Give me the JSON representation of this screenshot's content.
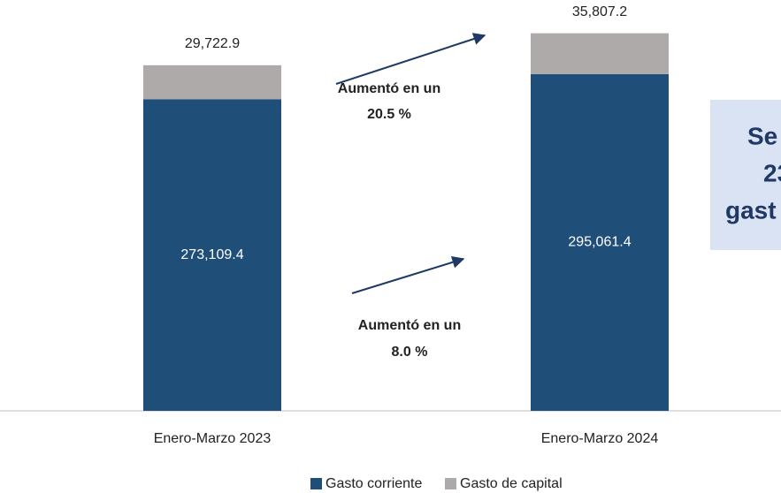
{
  "chart_data": {
    "type": "stacked_bar",
    "categories": [
      "Enero-Marzo 2023",
      "Enero-Marzo 2024"
    ],
    "series": [
      {
        "name": "Gasto corriente",
        "color": "#1f4e79",
        "values": [
          273109.4,
          295061.4
        ],
        "value_labels": [
          "273,109.4",
          "295,061.4"
        ]
      },
      {
        "name": "Gasto de capital",
        "color": "#aeaaaa",
        "values": [
          29722.9,
          35807.2
        ],
        "value_labels": [
          "29,722.9",
          "35,807.2"
        ]
      }
    ],
    "ylim": [
      0,
      360000
    ],
    "annotations": [
      {
        "lines": [
          "Aumentó en un",
          "20.5 %"
        ]
      },
      {
        "lines": [
          "Aumentó en un",
          "8.0 %"
        ]
      },
      {
        "lines": [
          "Se",
          "23",
          "gast"
        ]
      }
    ]
  }
}
